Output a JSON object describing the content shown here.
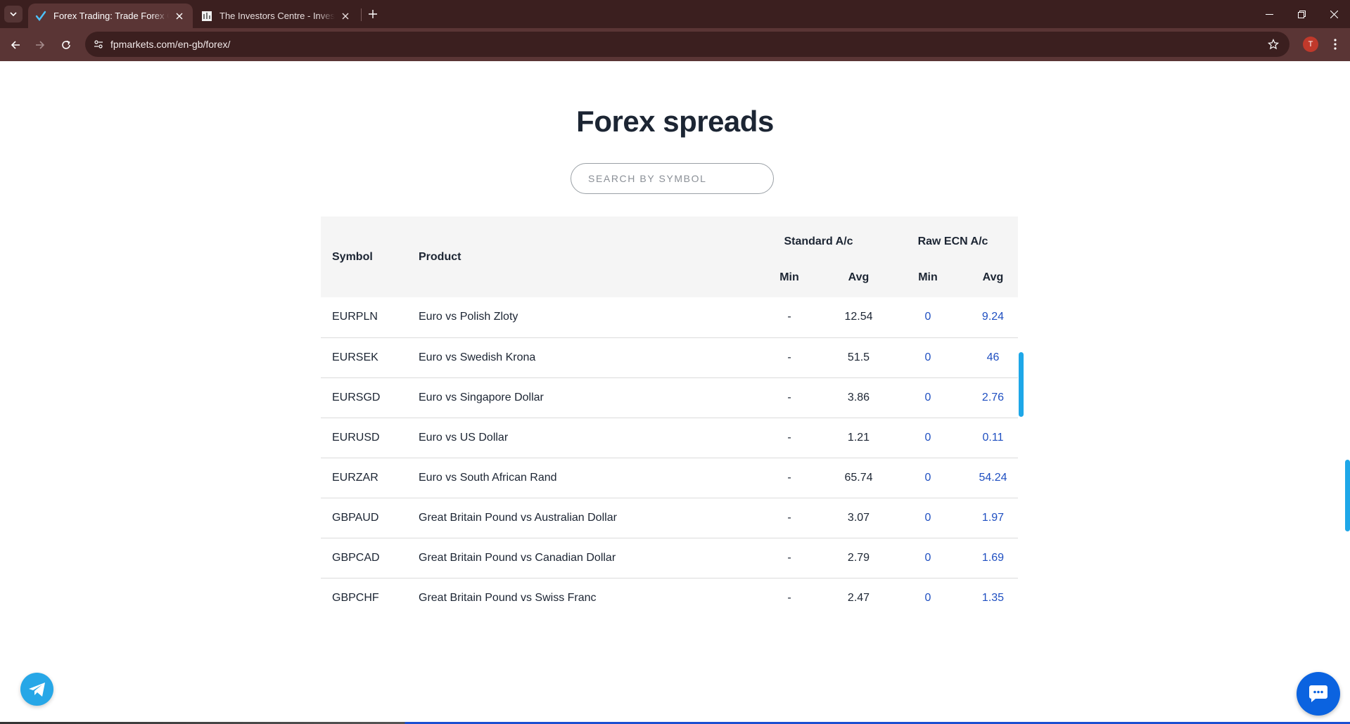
{
  "browser": {
    "tabs": [
      {
        "title": "Forex Trading: Trade Forex Online",
        "active": true
      },
      {
        "title": "The Investors Centre - Investing",
        "active": false
      }
    ],
    "url": "fpmarkets.com/en-gb/forex/",
    "profile_initial": "T"
  },
  "page": {
    "heading": "Forex spreads",
    "search_placeholder": "SEARCH BY SYMBOL"
  },
  "table": {
    "headers": {
      "symbol": "Symbol",
      "product": "Product",
      "standard": "Standard A/c",
      "raw": "Raw ECN A/c",
      "min": "Min",
      "avg": "Avg"
    },
    "rows": [
      {
        "symbol": "EURPLN",
        "product": "Euro vs Polish Zloty",
        "std_min": "-",
        "std_avg": "12.54",
        "raw_min": "0",
        "raw_avg": "9.24"
      },
      {
        "symbol": "EURSEK",
        "product": "Euro vs Swedish Krona",
        "std_min": "-",
        "std_avg": "51.5",
        "raw_min": "0",
        "raw_avg": "46"
      },
      {
        "symbol": "EURSGD",
        "product": "Euro vs Singapore Dollar",
        "std_min": "-",
        "std_avg": "3.86",
        "raw_min": "0",
        "raw_avg": "2.76"
      },
      {
        "symbol": "EURUSD",
        "product": "Euro vs US Dollar",
        "std_min": "-",
        "std_avg": "1.21",
        "raw_min": "0",
        "raw_avg": "0.11"
      },
      {
        "symbol": "EURZAR",
        "product": "Euro vs South African Rand",
        "std_min": "-",
        "std_avg": "65.74",
        "raw_min": "0",
        "raw_avg": "54.24"
      },
      {
        "symbol": "GBPAUD",
        "product": "Great Britain Pound vs Australian Dollar",
        "std_min": "-",
        "std_avg": "3.07",
        "raw_min": "0",
        "raw_avg": "1.97"
      },
      {
        "symbol": "GBPCAD",
        "product": "Great Britain Pound vs Canadian Dollar",
        "std_min": "-",
        "std_avg": "2.79",
        "raw_min": "0",
        "raw_avg": "1.69"
      },
      {
        "symbol": "GBPCHF",
        "product": "Great Britain Pound vs Swiss Franc",
        "std_min": "-",
        "std_avg": "2.47",
        "raw_min": "0",
        "raw_avg": "1.35"
      }
    ]
  },
  "colors": {
    "link_blue": "#1f4fc1",
    "accent_cyan": "#1ea7e8",
    "chrome_dark": "#3b1f1f",
    "chrome_light": "#5a3535"
  }
}
